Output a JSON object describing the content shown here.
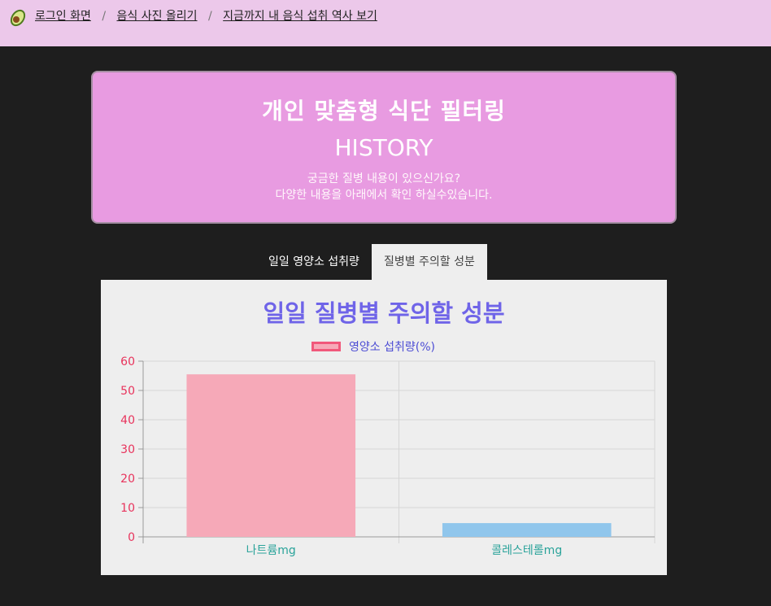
{
  "nav": {
    "logo_icon": "avocado-icon",
    "links": [
      "로그인 화면",
      "음식 사진 올리기",
      "지금까지 내 음식 섭취 역사 보기"
    ],
    "separator": "/"
  },
  "hero": {
    "title": "개인 맞춤형 식단 필터링",
    "subtitle": "HISTORY",
    "desc_line1": "궁금한 질병 내용이 있으신가요?",
    "desc_line2": "다양한 내용을 아래에서 확인 하실수있습니다."
  },
  "tabs": [
    {
      "label": "일일 영양소 섭취량",
      "active": false
    },
    {
      "label": "질병별 주의할 성분",
      "active": true
    }
  ],
  "chart_data": {
    "type": "bar",
    "title": "일일 질병별 주의할 성분",
    "legend": "영양소 섭취량(%)",
    "categories": [
      "나트륨mg",
      "콜레스테롤mg"
    ],
    "values": [
      55.5,
      4.7
    ],
    "bar_colors": [
      "#f6a9b8",
      "#90c6ec"
    ],
    "ylim": [
      0,
      60
    ],
    "yticks": [
      "60",
      "50",
      "40",
      "30",
      "20",
      "10",
      "0"
    ],
    "colors": {
      "tick_y": "#e8335c",
      "tick_x": "#2aa39a",
      "title": "#6f64e8",
      "grid": "#d6d6d6"
    }
  }
}
